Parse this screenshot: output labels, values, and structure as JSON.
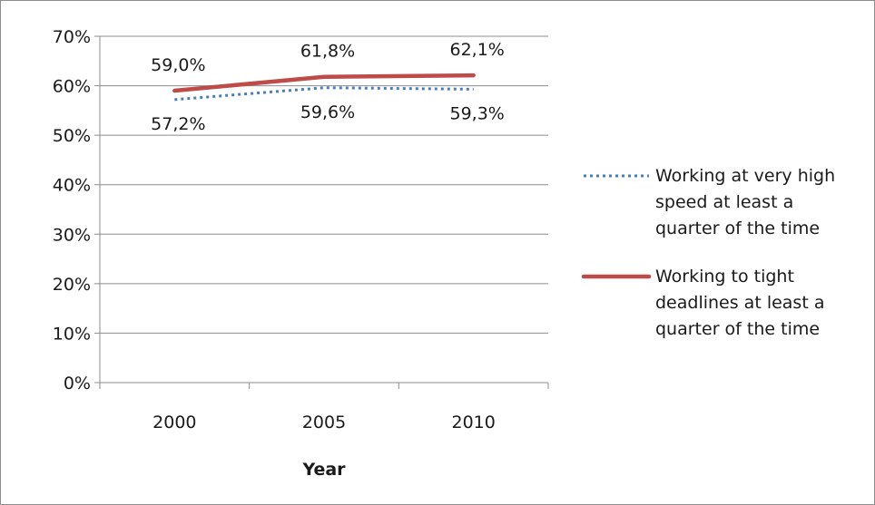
{
  "chart_data": {
    "type": "line",
    "categories": [
      "2000",
      "2005",
      "2010"
    ],
    "series": [
      {
        "name": "Working at very high speed at least a quarter of the time",
        "legend_lines": [
          "Working at very high",
          "speed at least a",
          "quarter of the time"
        ],
        "values": [
          57.2,
          59.6,
          59.3
        ],
        "labels": [
          "57,2%",
          "59,6%",
          "59,3%"
        ],
        "color": "#4a7ebb",
        "style": "dotted"
      },
      {
        "name": "Working to tight deadlines at least a quarter of the time",
        "legend_lines": [
          "Working to tight",
          "deadlines at least a",
          "quarter of the time"
        ],
        "values": [
          59.0,
          61.8,
          62.1
        ],
        "labels": [
          "59,0%",
          "61,8%",
          "62,1%"
        ],
        "color": "#be4b48",
        "style": "solid"
      }
    ],
    "xlabel": "Year",
    "ylabel": "",
    "ylim": [
      0,
      70
    ],
    "ytick_values": [
      0,
      10,
      20,
      30,
      40,
      50,
      60,
      70
    ],
    "yticks": [
      "0%",
      "10%",
      "20%",
      "30%",
      "40%",
      "50%",
      "60%",
      "70%"
    ],
    "grid": true,
    "legend_position": "right"
  }
}
